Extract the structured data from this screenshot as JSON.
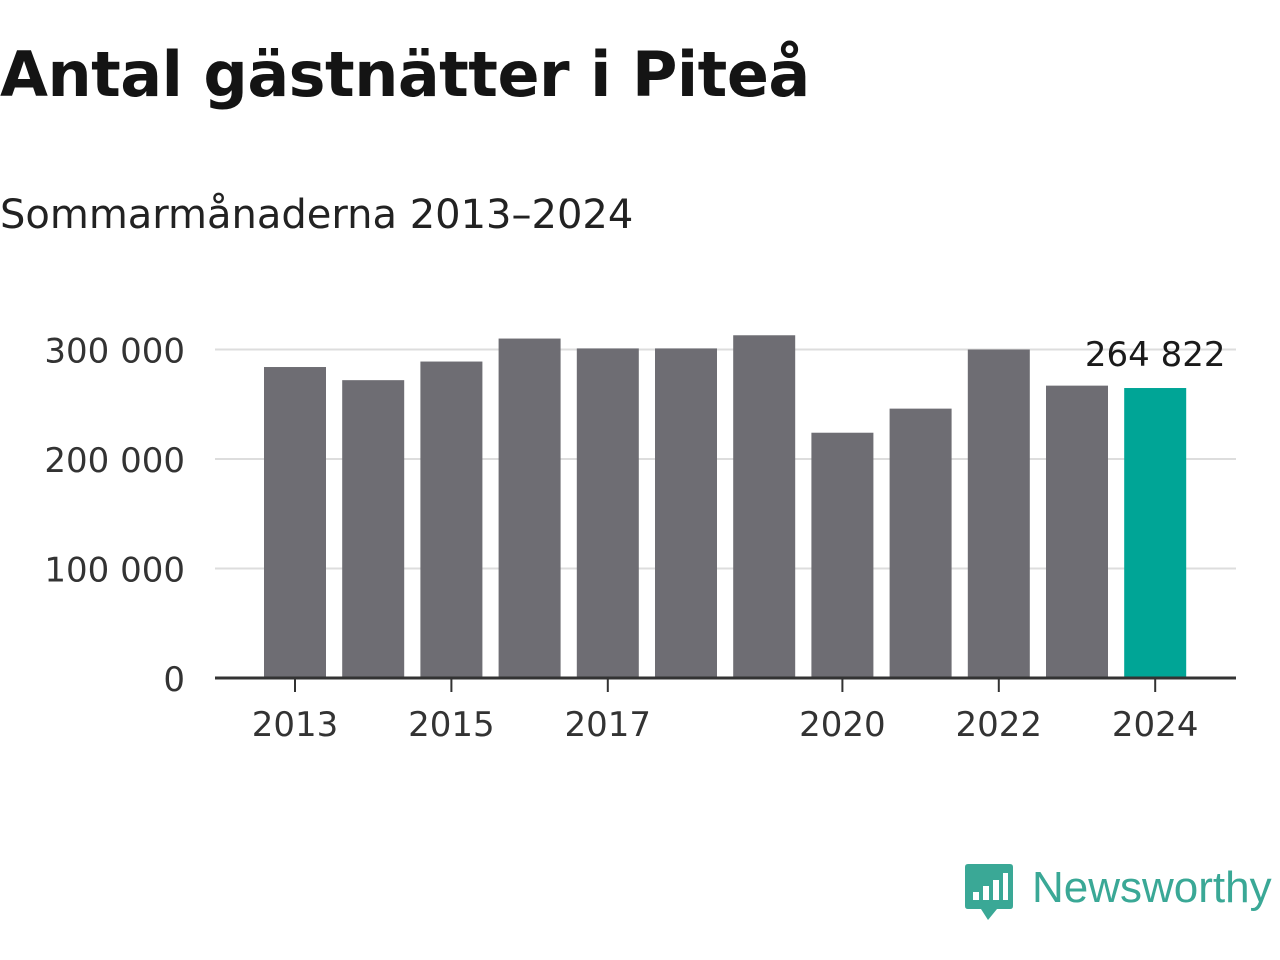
{
  "title": "Antal gästnätter i Piteå",
  "subtitle": "Sommarmånaderna 2013–2024",
  "brand": {
    "name": "Newsworthy",
    "color": "#3aa896",
    "icon": "chart-bubble-icon"
  },
  "chart_data": {
    "type": "bar",
    "categories": [
      "2013",
      "2014",
      "2015",
      "2016",
      "2017",
      "2018",
      "2019",
      "2020",
      "2021",
      "2022",
      "2023",
      "2024"
    ],
    "values": [
      284000,
      272000,
      289000,
      310000,
      301000,
      301000,
      313000,
      224000,
      246000,
      300000,
      267000,
      264822
    ],
    "x_tick_labels": [
      "2013",
      "2015",
      "2017",
      "2020",
      "2022",
      "2024"
    ],
    "y_ticks": [
      0,
      100000,
      200000,
      300000
    ],
    "y_tick_labels": [
      "0",
      "100 000",
      "200 000",
      "300 000"
    ],
    "ylim": [
      0,
      320000
    ],
    "highlight": {
      "category": "2024",
      "label": "264 822",
      "color": "#00a596"
    },
    "bar_color": "#6e6d73",
    "grid": true,
    "xlabel": "",
    "ylabel": ""
  }
}
